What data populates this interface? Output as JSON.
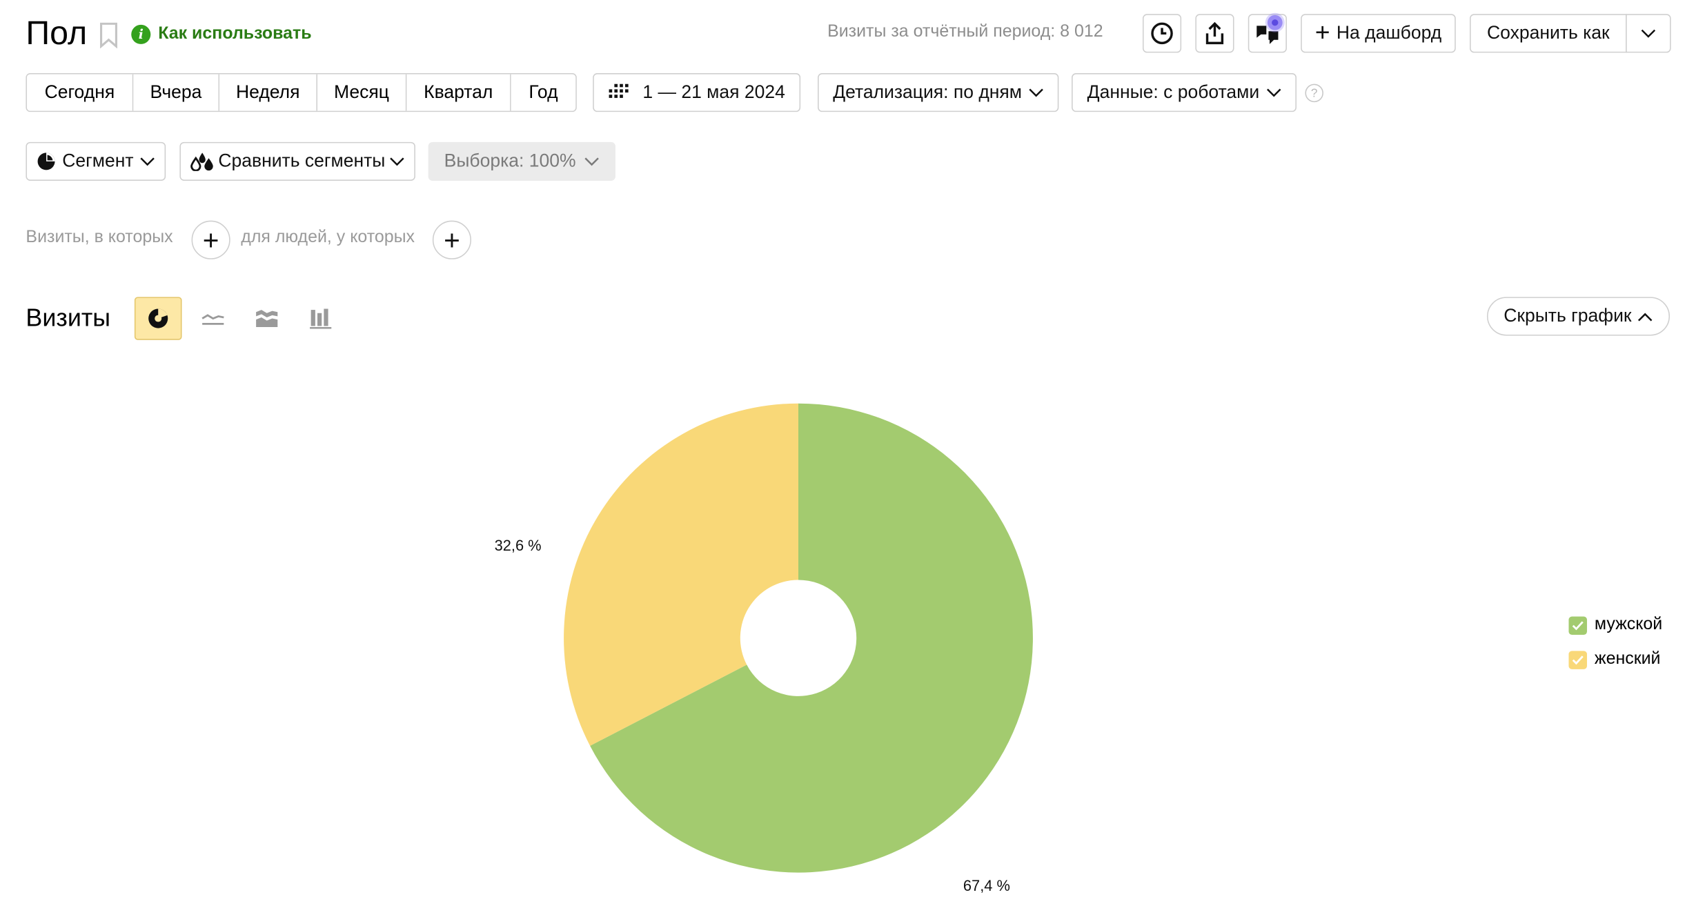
{
  "header": {
    "title": "Пол",
    "how_to_use": "Как использовать",
    "visits_total": "Визиты за отчётный период: 8 012",
    "to_dashboard": "На дашборд",
    "save_as": "Сохранить как"
  },
  "toolbar": {
    "periods": [
      "Сегодня",
      "Вчера",
      "Неделя",
      "Месяц",
      "Квартал",
      "Год"
    ],
    "date_range": "1 — 21 мая 2024",
    "detail": "Детализация: по дням",
    "data_mode": "Данные: с роботами",
    "help": "?"
  },
  "segments": {
    "segment": "Сегмент",
    "compare": "Сравнить сегменты",
    "sample": "Выборка: 100%"
  },
  "filters": {
    "visits_label": "Визиты, в которых",
    "people_label": "для людей, у которых"
  },
  "section": {
    "title": "Визиты",
    "hide_chart": "Скрыть график"
  },
  "colors": {
    "male": "#a3cb6f",
    "female": "#f9d878",
    "accent_green": "#2a7c14"
  },
  "chart_data": {
    "type": "pie",
    "donut": true,
    "categories": [
      "мужской",
      "женский"
    ],
    "values": [
      67.4,
      32.6
    ],
    "labels": [
      "67,4 %",
      "32,6 %"
    ],
    "legend_position": "right"
  }
}
